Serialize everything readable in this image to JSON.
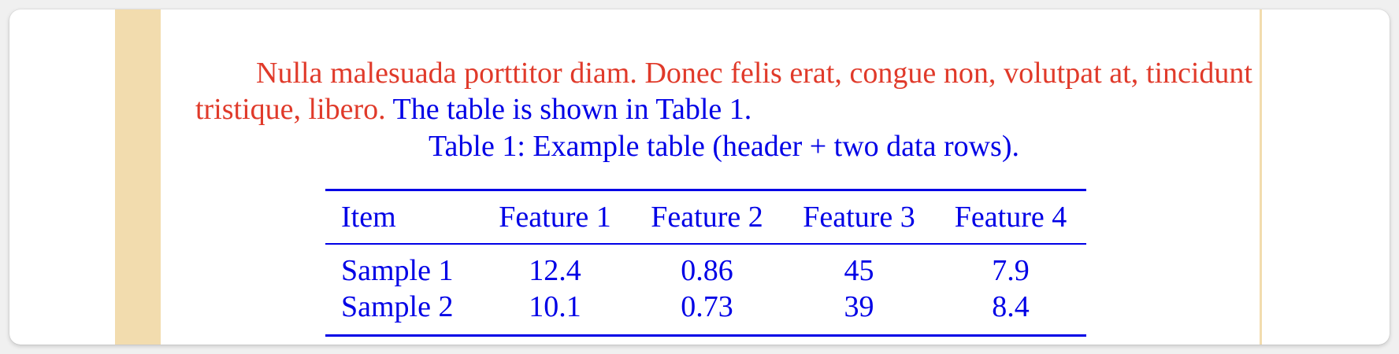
{
  "paragraph": {
    "red_text": "Nulla malesuada porttitor diam. Donec felis erat, congue non, volutpat at, tincidunt tristique, libero.",
    "blue_text": "The table is shown in Table 1."
  },
  "table": {
    "caption": "Table 1: Example table (header + two data rows).",
    "headers": [
      "Item",
      "Feature 1",
      "Feature 2",
      "Feature 3",
      "Feature 4"
    ],
    "rows": [
      [
        "Sample 1",
        "12.4",
        "0.86",
        "45",
        "7.9"
      ],
      [
        "Sample 2",
        "10.1",
        "0.73",
        "39",
        "8.4"
      ]
    ]
  },
  "colors": {
    "red_text": "#e03a2a",
    "blue_text": "#0000e6",
    "margin_bar": "#f2dcae"
  }
}
